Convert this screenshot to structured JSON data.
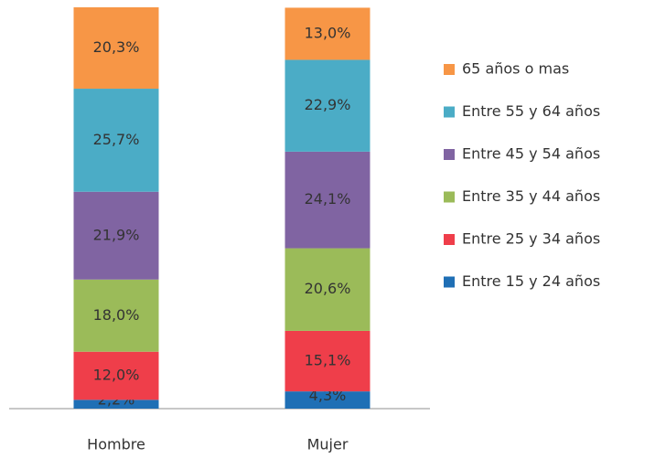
{
  "chart_data": {
    "type": "stacked_bar",
    "categories": [
      "Hombre",
      "Mujer"
    ],
    "series": [
      {
        "name": "Entre 15 y 24 años",
        "color": "#1f6fb5",
        "values": [
          2.2,
          4.3
        ],
        "value_labels": [
          "2,2%",
          "4,3%"
        ]
      },
      {
        "name": "Entre 25 y 34 años",
        "color": "#ef3e4a",
        "values": [
          12.0,
          15.1
        ],
        "value_labels": [
          "12,0%",
          "15,1%"
        ]
      },
      {
        "name": "Entre 35 y 44 años",
        "color": "#9bbb59",
        "values": [
          18.0,
          20.6
        ],
        "value_labels": [
          "18,0%",
          "20,6%"
        ]
      },
      {
        "name": "Entre 45 y 54 años",
        "color": "#8064a2",
        "values": [
          21.9,
          24.1
        ],
        "value_labels": [
          "21,9%",
          "24,1%"
        ]
      },
      {
        "name": "Entre 55 y 64 años",
        "color": "#4bacc6",
        "values": [
          25.7,
          22.9
        ],
        "value_labels": [
          "25,7%",
          "22,9%"
        ]
      },
      {
        "name": "65 años o mas",
        "color": "#f79646",
        "values": [
          20.3,
          13.0
        ],
        "value_labels": [
          "20,3%",
          "13,0%"
        ]
      }
    ]
  }
}
